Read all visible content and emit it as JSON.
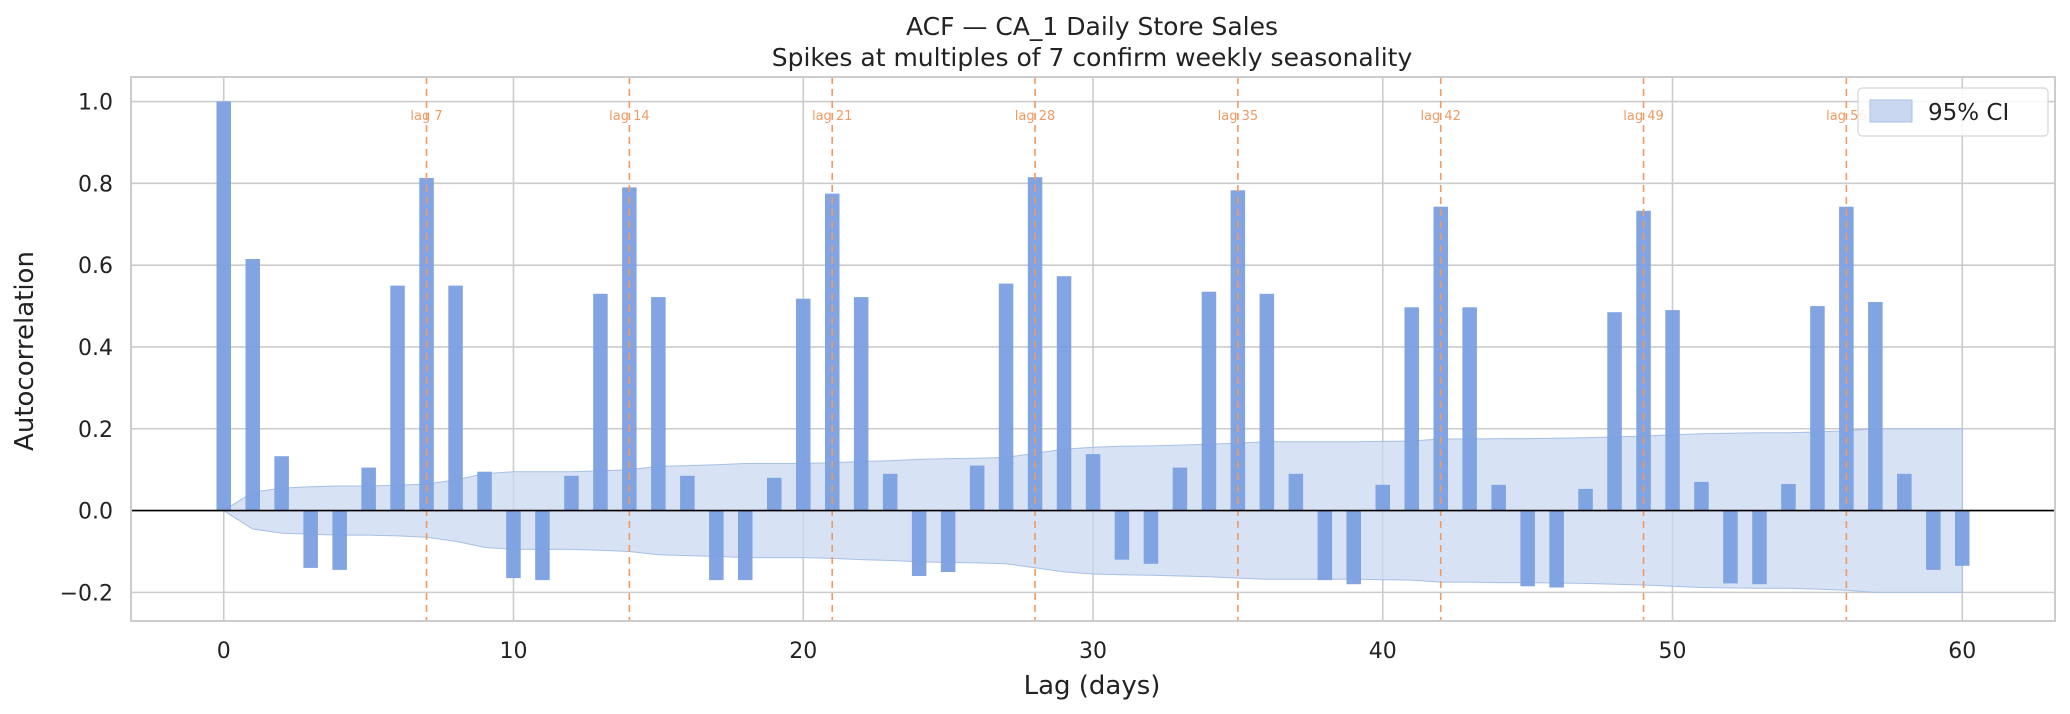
{
  "chart_data": {
    "type": "bar",
    "title": "ACF — CA_1 Daily Store Sales",
    "subtitle": "Spikes at multiples of 7 confirm weekly seasonality",
    "xlabel": "Lag (days)",
    "ylabel": "Autocorrelation",
    "xlim": [
      -3.2,
      63.2
    ],
    "ylim": [
      -0.27,
      1.06
    ],
    "xticks": [
      0,
      10,
      20,
      30,
      40,
      50,
      60
    ],
    "xtick_labels": [
      "0",
      "10",
      "20",
      "30",
      "40",
      "50",
      "60"
    ],
    "yticks": [
      -0.2,
      0.0,
      0.2,
      0.4,
      0.6,
      0.8,
      1.0
    ],
    "ytick_labels": [
      "−0.2",
      "0.0",
      "0.2",
      "0.4",
      "0.6",
      "0.8",
      "1.0"
    ],
    "grid": true,
    "lags": [
      0,
      1,
      2,
      3,
      4,
      5,
      6,
      7,
      8,
      9,
      10,
      11,
      12,
      13,
      14,
      15,
      16,
      17,
      18,
      19,
      20,
      21,
      22,
      23,
      24,
      25,
      26,
      27,
      28,
      29,
      30,
      31,
      32,
      33,
      34,
      35,
      36,
      37,
      38,
      39,
      40,
      41,
      42,
      43,
      44,
      45,
      46,
      47,
      48,
      49,
      50,
      51,
      52,
      53,
      54,
      55,
      56,
      57,
      58,
      59,
      60
    ],
    "acf": [
      1.0,
      0.615,
      0.133,
      -0.14,
      -0.145,
      0.105,
      0.55,
      0.813,
      0.55,
      0.095,
      -0.165,
      -0.17,
      0.085,
      0.53,
      0.79,
      0.522,
      0.085,
      -0.17,
      -0.17,
      0.08,
      0.518,
      0.775,
      0.522,
      0.09,
      -0.16,
      -0.15,
      0.11,
      0.555,
      0.815,
      0.573,
      0.138,
      -0.12,
      -0.13,
      0.105,
      0.535,
      0.783,
      0.53,
      0.09,
      -0.17,
      -0.18,
      0.063,
      0.497,
      0.743,
      0.497,
      0.063,
      -0.185,
      -0.188,
      0.053,
      0.485,
      0.733,
      0.49,
      0.07,
      -0.178,
      -0.18,
      0.065,
      0.5,
      0.743,
      0.51,
      0.09,
      -0.145,
      -0.135
    ],
    "ci_upper": [
      0.0,
      0.045,
      0.055,
      0.058,
      0.06,
      0.06,
      0.062,
      0.065,
      0.075,
      0.09,
      0.095,
      0.095,
      0.095,
      0.097,
      0.1,
      0.108,
      0.11,
      0.112,
      0.115,
      0.115,
      0.115,
      0.117,
      0.12,
      0.122,
      0.125,
      0.127,
      0.128,
      0.13,
      0.14,
      0.15,
      0.155,
      0.157,
      0.158,
      0.16,
      0.162,
      0.165,
      0.168,
      0.168,
      0.168,
      0.168,
      0.169,
      0.17,
      0.175,
      0.175,
      0.176,
      0.176,
      0.177,
      0.178,
      0.18,
      0.182,
      0.185,
      0.188,
      0.189,
      0.19,
      0.19,
      0.192,
      0.195,
      0.2,
      0.2,
      0.2,
      0.2
    ],
    "ci_label": "95% CI",
    "vlines": [
      7,
      14,
      21,
      28,
      35,
      42,
      49,
      56
    ],
    "vline_labels": [
      "lag 7",
      "lag 14",
      "lag 21",
      "lag 28",
      "lag 35",
      "lag 42",
      "lag 49",
      "lag 56"
    ],
    "legend_position": "top-right",
    "colors": {
      "bar": "#7b9fe0",
      "ci_fill": "#c9d8f0",
      "ci_edge": "#a8bfe6",
      "vline": "#ee9a63",
      "zero_line": "#000000",
      "grid": "#cccccc",
      "frame": "#cccccc"
    }
  }
}
